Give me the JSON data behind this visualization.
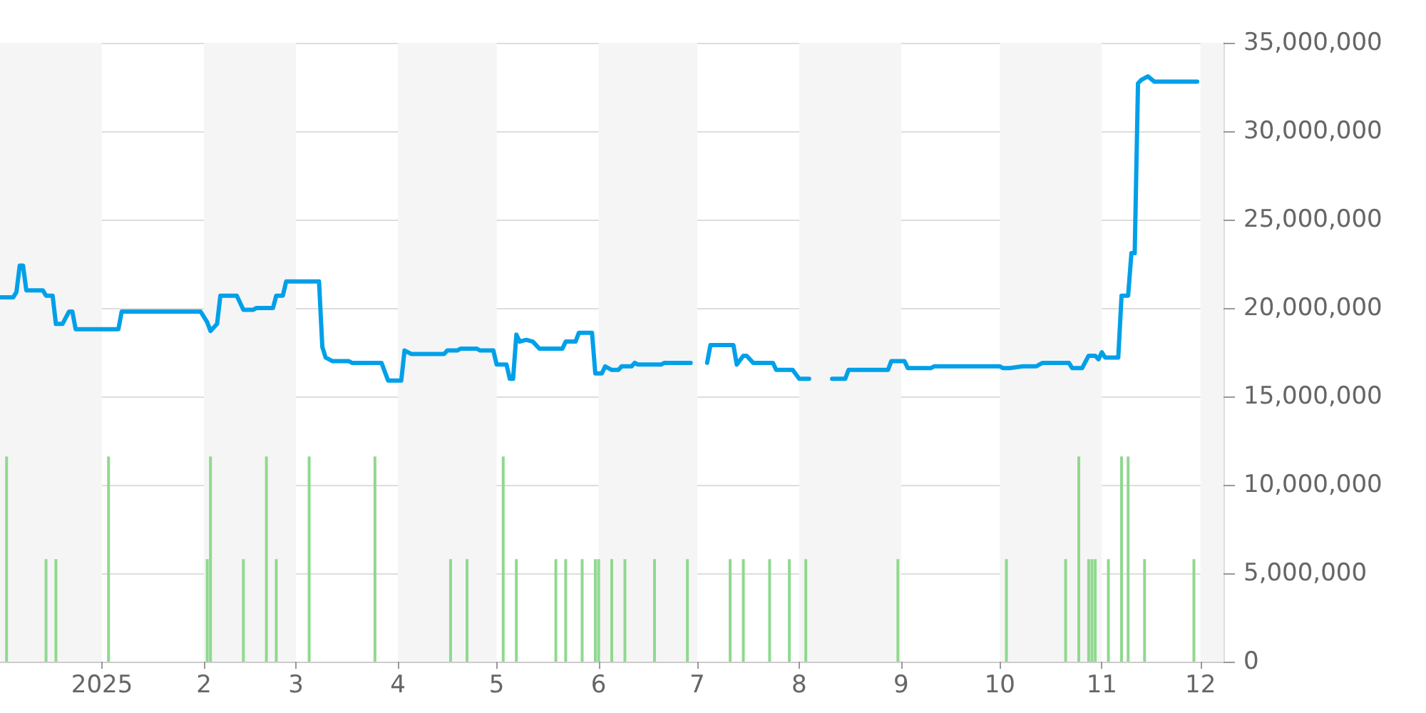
{
  "chart_data": {
    "type": "line",
    "xlim": [
      "2024-12-01",
      "2025-12-08"
    ],
    "xticks": [
      {
        "value": "2025-01-01",
        "label": "2025"
      },
      {
        "value": "2025-02-01",
        "label": "2"
      },
      {
        "value": "2025-03-01",
        "label": "3"
      },
      {
        "value": "2025-04-01",
        "label": "4"
      },
      {
        "value": "2025-05-01",
        "label": "5"
      },
      {
        "value": "2025-06-01",
        "label": "6"
      },
      {
        "value": "2025-07-01",
        "label": "7"
      },
      {
        "value": "2025-08-01",
        "label": "8"
      },
      {
        "value": "2025-09-01",
        "label": "9"
      },
      {
        "value": "2025-10-01",
        "label": "10"
      },
      {
        "value": "2025-11-01",
        "label": "11"
      },
      {
        "value": "2025-12-01",
        "label": "12"
      }
    ],
    "ylim": [
      0,
      35000000
    ],
    "yticks": [
      {
        "value": 0,
        "label": "0"
      },
      {
        "value": 5000000,
        "label": "5,000,000"
      },
      {
        "value": 10000000,
        "label": "10,000,000"
      },
      {
        "value": 15000000,
        "label": "15,000,000"
      },
      {
        "value": 20000000,
        "label": "20,000,000"
      },
      {
        "value": 25000000,
        "label": "25,000,000"
      },
      {
        "value": 30000000,
        "label": "30,000,000"
      },
      {
        "value": 35000000,
        "label": "35,000,000"
      }
    ],
    "grid": "y",
    "marker": "none",
    "bands": [
      {
        "axis": "x",
        "from": "2024-12-01",
        "to": "2025-01-01",
        "color": "#f5f5f5"
      },
      {
        "axis": "x",
        "from": "2025-02-01",
        "to": "2025-03-01",
        "color": "#f5f5f5"
      },
      {
        "axis": "x",
        "from": "2025-04-01",
        "to": "2025-05-01",
        "color": "#f5f5f5"
      },
      {
        "axis": "x",
        "from": "2025-06-01",
        "to": "2025-07-01",
        "color": "#f5f5f5"
      },
      {
        "axis": "x",
        "from": "2025-08-01",
        "to": "2025-09-01",
        "color": "#f5f5f5"
      },
      {
        "axis": "x",
        "from": "2025-10-01",
        "to": "2025-11-01",
        "color": "#f5f5f5"
      },
      {
        "axis": "x",
        "from": "2025-12-01",
        "to": "2025-12-08",
        "color": "#f5f5f5"
      }
    ],
    "series": [
      {
        "type": "bar",
        "color": "#90d890",
        "x": [
          "2024-12-03",
          "2024-12-15",
          "2024-12-18",
          "2025-01-03",
          "2025-02-02",
          "2025-02-03",
          "2025-02-13",
          "2025-02-20",
          "2025-02-23",
          "2025-03-05",
          "2025-03-25",
          "2025-04-17",
          "2025-04-22",
          "2025-05-03",
          "2025-05-07",
          "2025-05-19",
          "2025-05-22",
          "2025-05-27",
          "2025-05-31",
          "2025-06-01",
          "2025-06-05",
          "2025-06-09",
          "2025-06-18",
          "2025-06-28",
          "2025-07-11",
          "2025-07-15",
          "2025-07-23",
          "2025-07-29",
          "2025-08-03",
          "2025-08-31",
          "2025-10-03",
          "2025-10-21",
          "2025-10-25",
          "2025-10-28",
          "2025-10-29",
          "2025-10-30",
          "2025-11-03",
          "2025-11-07",
          "2025-11-09",
          "2025-11-14",
          "2025-11-29"
        ],
        "values": [
          11600000,
          5800000,
          5800000,
          11600000,
          5800000,
          11600000,
          5800000,
          11600000,
          5800000,
          11600000,
          11600000,
          5800000,
          5800000,
          11600000,
          5800000,
          5800000,
          5800000,
          5800000,
          5800000,
          5800000,
          5800000,
          5800000,
          5800000,
          5800000,
          5800000,
          5800000,
          5800000,
          5800000,
          5800000,
          5800000,
          5800000,
          5800000,
          11600000,
          5800000,
          5800000,
          5800000,
          5800000,
          11600000,
          11600000,
          5800000,
          5800000
        ]
      },
      {
        "color": "#00a0e9",
        "x": [
          "2024-12-01",
          "2024-12-05",
          "2024-12-06",
          "2024-12-07",
          "2024-12-08",
          "2024-12-09",
          "2024-12-14",
          "2024-12-15",
          "2024-12-17",
          "2024-12-18",
          "2024-12-20",
          "2024-12-22",
          "2024-12-23",
          "2024-12-24",
          "2025-01-06",
          "2025-01-07",
          "2025-01-31",
          "2025-02-02",
          "2025-02-03",
          "2025-02-05",
          "2025-02-06",
          "2025-02-11",
          "2025-02-13",
          "2025-02-16",
          "2025-02-17",
          "2025-02-22",
          "2025-02-23",
          "2025-02-25",
          "2025-02-26",
          "2025-03-08",
          "2025-03-09",
          "2025-03-10",
          "2025-03-12",
          "2025-03-17",
          "2025-03-18",
          "2025-03-27",
          "2025-03-29",
          "2025-04-02",
          "2025-04-03",
          "2025-04-05",
          "2025-04-15",
          "2025-04-16",
          "2025-04-19",
          "2025-04-20",
          "2025-04-25",
          "2025-04-26",
          "2025-04-30",
          "2025-05-01",
          "2025-05-04",
          "2025-05-05",
          "2025-05-06",
          "2025-05-07",
          "2025-05-08",
          "2025-05-10",
          "2025-05-12",
          "2025-05-14",
          "2025-05-21",
          "2025-05-22",
          "2025-05-25",
          "2025-05-26",
          "2025-05-30",
          "2025-05-31",
          "2025-06-02",
          "2025-06-03",
          "2025-06-05",
          "2025-06-07",
          "2025-06-08",
          "2025-06-11",
          "2025-06-12",
          "2025-06-13",
          "2025-06-20",
          "2025-06-21",
          "2025-06-29",
          "2025-07-01",
          "2025-07-04",
          "2025-07-05",
          "2025-07-12",
          "2025-07-13",
          "2025-07-15",
          "2025-07-16",
          "2025-07-18",
          "2025-07-24",
          "2025-07-25",
          "2025-07-30",
          "2025-08-01",
          "2025-08-04",
          "2025-08-08",
          "2025-08-11",
          "2025-08-15",
          "2025-08-16",
          "2025-08-28",
          "2025-08-29",
          "2025-09-02",
          "2025-09-03",
          "2025-09-10",
          "2025-09-11",
          "2025-10-01",
          "2025-10-02",
          "2025-10-04",
          "2025-10-08",
          "2025-10-12",
          "2025-10-14",
          "2025-10-22",
          "2025-10-23",
          "2025-10-26",
          "2025-10-28",
          "2025-10-30",
          "2025-10-31",
          "2025-11-01",
          "2025-11-02",
          "2025-11-06",
          "2025-11-07",
          "2025-11-09",
          "2025-11-10",
          "2025-11-11",
          "2025-11-12",
          "2025-11-13",
          "2025-11-15",
          "2025-11-17",
          "2025-11-30"
        ],
        "values": [
          20600000,
          20600000,
          20900000,
          22400000,
          22400000,
          21000000,
          21000000,
          20700000,
          20700000,
          19100000,
          19100000,
          19800000,
          19800000,
          18800000,
          18800000,
          19800000,
          19800000,
          19200000,
          18700000,
          19100000,
          20700000,
          20700000,
          19900000,
          19900000,
          20000000,
          20000000,
          20700000,
          20700000,
          21500000,
          21500000,
          17800000,
          17200000,
          17000000,
          17000000,
          16900000,
          16900000,
          15900000,
          15900000,
          17600000,
          17400000,
          17400000,
          17600000,
          17600000,
          17700000,
          17700000,
          17600000,
          17600000,
          16800000,
          16800000,
          16000000,
          16000000,
          18500000,
          18100000,
          18200000,
          18100000,
          17700000,
          17700000,
          18100000,
          18100000,
          18600000,
          18600000,
          16300000,
          16300000,
          16700000,
          16500000,
          16500000,
          16700000,
          16700000,
          16900000,
          16800000,
          16800000,
          16900000,
          16900000,
          null,
          16900000,
          17900000,
          17900000,
          16800000,
          17300000,
          17300000,
          16900000,
          16900000,
          16500000,
          16500000,
          16000000,
          16000000,
          null,
          16000000,
          16000000,
          16500000,
          16500000,
          17000000,
          17000000,
          16600000,
          16600000,
          16700000,
          16700000,
          16600000,
          16600000,
          16700000,
          16700000,
          16900000,
          16900000,
          16600000,
          16600000,
          17300000,
          17300000,
          17100000,
          17500000,
          17200000,
          17200000,
          20700000,
          20700000,
          23100000,
          23100000,
          32700000,
          32900000,
          33100000,
          32800000,
          32800000
        ]
      }
    ]
  }
}
